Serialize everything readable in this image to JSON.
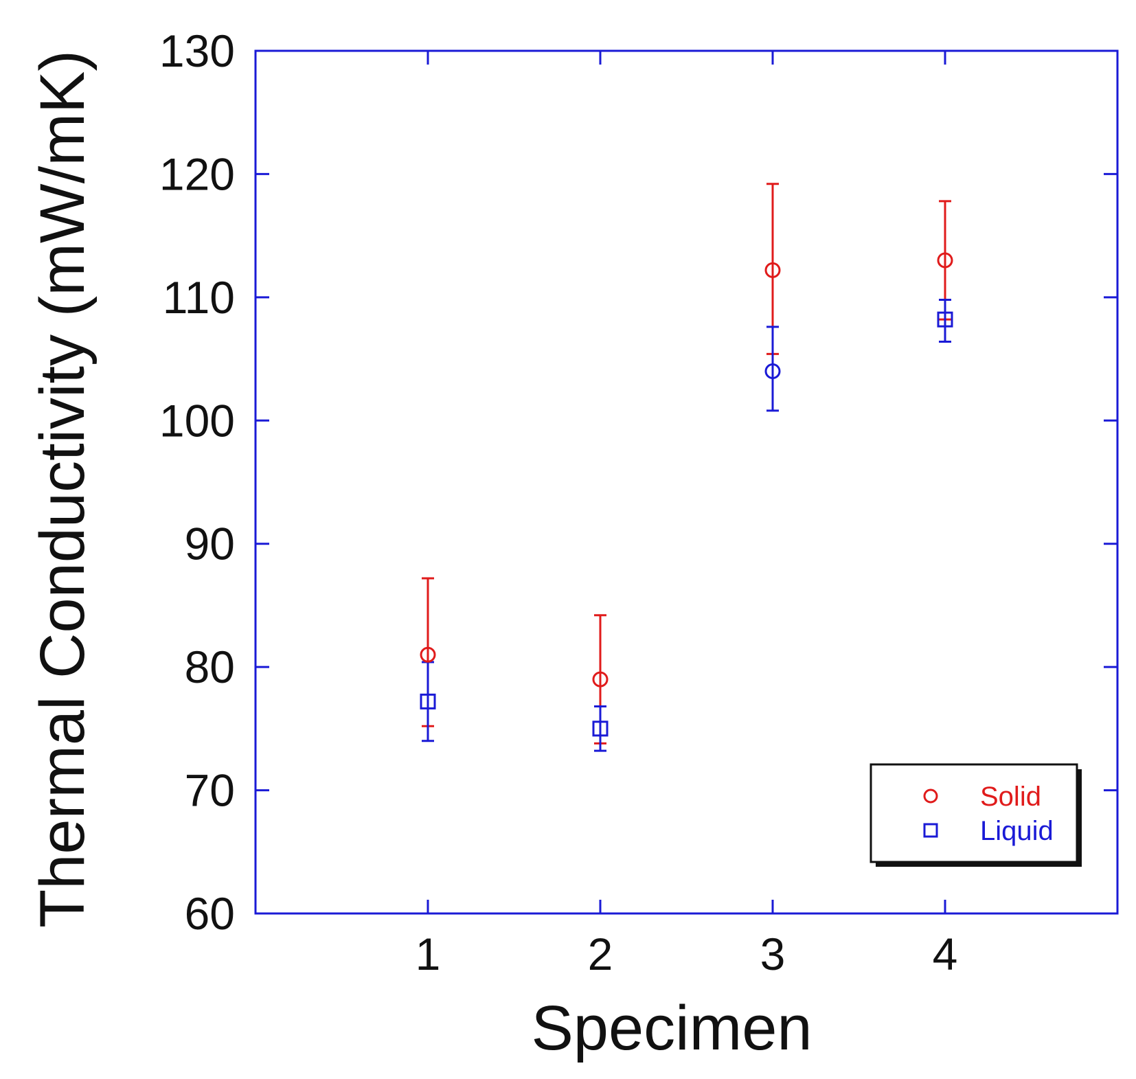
{
  "chart_data": {
    "type": "scatter",
    "title": "",
    "xlabel": "Specimen",
    "ylabel": "Thermal Conductivity (mW/mK)",
    "xlim": [
      0,
      5
    ],
    "ylim": [
      60,
      130
    ],
    "x_ticks": [
      1,
      2,
      3,
      4
    ],
    "y_ticks": [
      60,
      70,
      80,
      90,
      100,
      110,
      120,
      130
    ],
    "grid": false,
    "legend_position": "bottom-right",
    "frame_color": "#1a1ad6",
    "series": [
      {
        "name": "Solid",
        "color": "#e01b1b",
        "marker": "circle",
        "x": [
          1,
          2,
          3,
          4
        ],
        "y": [
          81,
          79,
          112.2,
          113
        ],
        "error_low": [
          75.2,
          73.8,
          105.4,
          108.2
        ],
        "error_high": [
          87.2,
          84.2,
          119.2,
          117.8
        ]
      },
      {
        "name": "Liquid",
        "color": "#1a1ad6",
        "marker": "square",
        "x": [
          1,
          2,
          3,
          4
        ],
        "y": [
          77.2,
          75,
          104,
          108.2
        ],
        "error_low": [
          74,
          73.2,
          100.8,
          106.4
        ],
        "error_high": [
          80.4,
          76.8,
          107.6,
          109.8
        ]
      }
    ],
    "annotations": [
      {
        "note": "Specimen 3 Liquid value is drawn with a circle marker",
        "specimen": 3,
        "series": "Liquid"
      }
    ]
  }
}
